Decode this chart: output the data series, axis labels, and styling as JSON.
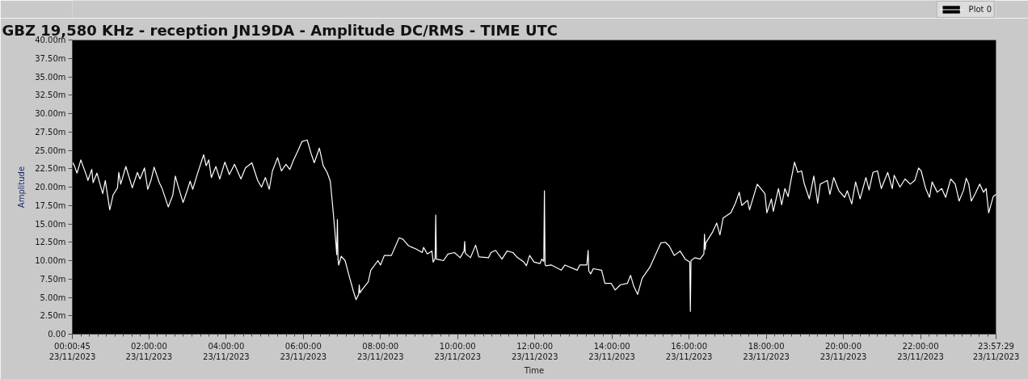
{
  "chart_data": {
    "type": "line",
    "title": "GBZ  19,580 KHz - reception JN19DA -  Amplitude DC/RMS   - TIME UTC",
    "xlabel": "Time",
    "ylabel": "Amplitude",
    "xlim": [
      "2023-11-23T00:00:45",
      "2023-11-23T23:57:29"
    ],
    "xticks": [
      {
        "value": "2023-11-23T00:00:45",
        "label": "00:00:45\n23/11/2023"
      },
      {
        "value": "2023-11-23T02:00",
        "label": "02:00:00\n23/11/2023"
      },
      {
        "value": "2023-11-23T04:00",
        "label": "04:00:00\n23/11/2023"
      },
      {
        "value": "2023-11-23T06:00",
        "label": "06:00:00\n23/11/2023"
      },
      {
        "value": "2023-11-23T08:00",
        "label": "08:00:00\n23/11/2023"
      },
      {
        "value": "2023-11-23T10:00",
        "label": "10:00:00\n23/11/2023"
      },
      {
        "value": "2023-11-23T12:00",
        "label": "12:00:00\n23/11/2023"
      },
      {
        "value": "2023-11-23T14:00",
        "label": "14:00:00\n23/11/2023"
      },
      {
        "value": "2023-11-23T16:00",
        "label": "16:00:00\n23/11/2023"
      },
      {
        "value": "2023-11-23T18:00",
        "label": "18:00:00\n23/11/2023"
      },
      {
        "value": "2023-11-23T20:00",
        "label": "20:00:00\n23/11/2023"
      },
      {
        "value": "2023-11-23T22:00",
        "label": "22:00:00\n23/11/2023"
      },
      {
        "value": "2023-11-23T23:57:29",
        "label": "23:57:29\n23/11/2023"
      }
    ],
    "ylim": [
      0,
      40
    ],
    "yticks": [
      {
        "value": 0,
        "label": "0.00"
      },
      {
        "value": 2.5,
        "label": "2.50m"
      },
      {
        "value": 5,
        "label": "5.00m"
      },
      {
        "value": 7.5,
        "label": "7.50m"
      },
      {
        "value": 10,
        "label": "10.00m"
      },
      {
        "value": 12.5,
        "label": "12.50m"
      },
      {
        "value": 15,
        "label": "15.00m"
      },
      {
        "value": 17.5,
        "label": "17.50m"
      },
      {
        "value": 20,
        "label": "20.00m"
      },
      {
        "value": 22.5,
        "label": "22.50m"
      },
      {
        "value": 25,
        "label": "25.00m"
      },
      {
        "value": 27.5,
        "label": "27.50m"
      },
      {
        "value": 30,
        "label": "30.00m"
      },
      {
        "value": 32.5,
        "label": "32.50m"
      },
      {
        "value": 35,
        "label": "35.00m"
      },
      {
        "value": 37.5,
        "label": "37.50m"
      },
      {
        "value": 40,
        "label": "40.00m"
      }
    ],
    "legend": "top right",
    "x": [
      "2023-11-23T00:00:45",
      "2023-11-23T00:04",
      "2023-11-23T00:08",
      "2023-11-23T00:14",
      "2023-11-23T00:23",
      "2023-11-23T00:25",
      "2023-11-23T00:31",
      "2023-11-23T00:33",
      "2023-11-23T00:39",
      "2023-11-23T00:48",
      "2023-11-23T00:52",
      "2023-11-23T00:59",
      "2023-11-23T01:04",
      "2023-11-23T01:11",
      "2023-11-23T01:13",
      "2023-11-23T01:16",
      "2023-11-23T01:24",
      "2023-11-23T01:34",
      "2023-11-23T01:42",
      "2023-11-23T01:46",
      "2023-11-23T01:53",
      "2023-11-23T01:58",
      "2023-11-23T02:03",
      "2023-11-23T02:08",
      "2023-11-23T02:16",
      "2023-11-23T02:20",
      "2023-11-23T02:30",
      "2023-11-23T02:37",
      "2023-11-23T02:41",
      "2023-11-23T02:45",
      "2023-11-23T02:53",
      "2023-11-23T03:00",
      "2023-11-23T03:04",
      "2023-11-23T03:08",
      "2023-11-23T03:16",
      "2023-11-23T03:25",
      "2023-11-23T03:29",
      "2023-11-23T03:33",
      "2023-11-23T03:37",
      "2023-11-23T03:44",
      "2023-11-23T03:50",
      "2023-11-23T03:58",
      "2023-11-23T04:05",
      "2023-11-23T04:13",
      "2023-11-23T04:23",
      "2023-11-23T04:30",
      "2023-11-23T04:40",
      "2023-11-23T04:49",
      "2023-11-23T04:55",
      "2023-11-23T05:01",
      "2023-11-23T05:07",
      "2023-11-23T05:12",
      "2023-11-23T05:20",
      "2023-11-23T05:26",
      "2023-11-23T05:33",
      "2023-11-23T05:39",
      "2023-11-23T05:45",
      "2023-11-23T05:51",
      "2023-11-23T05:58",
      "2023-11-23T06:06",
      "2023-11-23T06:12",
      "2023-11-23T06:17",
      "2023-11-23T06:25",
      "2023-11-23T06:31",
      "2023-11-23T06:37",
      "2023-11-23T06:42",
      "2023-11-23T06:46",
      "2023-11-23T06:50",
      "2023-11-23T06:52",
      "2023-11-23T06:53",
      "2023-11-23T06:54",
      "2023-11-23T06:55",
      "2023-11-23T06:59",
      "2023-11-23T07:05",
      "2023-11-23T07:11",
      "2023-11-23T07:18",
      "2023-11-23T07:22",
      "2023-11-23T07:26",
      "2023-11-23T07:27",
      "2023-11-23T07:28",
      "2023-11-23T07:31",
      "2023-11-23T07:41",
      "2023-11-23T07:45",
      "2023-11-23T07:56",
      "2023-11-23T08:00",
      "2023-11-23T08:06",
      "2023-11-23T08:17",
      "2023-11-23T08:29",
      "2023-11-23T08:35",
      "2023-11-23T08:44",
      "2023-11-23T08:55",
      "2023-11-23T09:05",
      "2023-11-23T09:07",
      "2023-11-23T09:13",
      "2023-11-23T09:20",
      "2023-11-23T09:22",
      "2023-11-23T09:25",
      "2023-11-23T09:26",
      "2023-11-23T09:27",
      "2023-11-23T09:38",
      "2023-11-23T09:45",
      "2023-11-23T09:55",
      "2023-11-23T10:04",
      "2023-11-23T10:10",
      "2023-11-23T10:11",
      "2023-11-23T10:12",
      "2023-11-23T10:20",
      "2023-11-23T10:28",
      "2023-11-23T10:33",
      "2023-11-23T10:48",
      "2023-11-23T10:52",
      "2023-11-23T10:59",
      "2023-11-23T11:09",
      "2023-11-23T11:17",
      "2023-11-23T11:26",
      "2023-11-23T11:32",
      "2023-11-23T11:43",
      "2023-11-23T11:47",
      "2023-11-23T11:52",
      "2023-11-23T11:59",
      "2023-11-23T12:08",
      "2023-11-23T12:11",
      "2023-11-23T12:14",
      "2023-11-23T12:15",
      "2023-11-23T12:16",
      "2023-11-23T12:17",
      "2023-11-23T12:26",
      "2023-11-23T12:41",
      "2023-11-23T12:47",
      "2023-11-23T13:06",
      "2023-11-23T13:10",
      "2023-11-23T13:21",
      "2023-11-23T13:23",
      "2023-11-23T13:24",
      "2023-11-23T13:27",
      "2023-11-23T13:31",
      "2023-11-23T13:44",
      "2023-11-23T13:49",
      "2023-11-23T13:59",
      "2023-11-23T14:05",
      "2023-11-23T14:13",
      "2023-11-23T14:24",
      "2023-11-23T14:29",
      "2023-11-23T14:34",
      "2023-11-23T14:40",
      "2023-11-23T14:47",
      "2023-11-23T14:59",
      "2023-11-23T15:16",
      "2023-11-23T15:23",
      "2023-11-23T15:29",
      "2023-11-23T15:37",
      "2023-11-23T15:46",
      "2023-11-23T15:54",
      "2023-11-23T16:01",
      "2023-11-23T16:02",
      "2023-11-23T16:03",
      "2023-11-23T16:09",
      "2023-11-23T16:17",
      "2023-11-23T16:23",
      "2023-11-23T16:24",
      "2023-11-23T16:25",
      "2023-11-23T16:26",
      "2023-11-23T16:36",
      "2023-11-23T16:43",
      "2023-11-23T16:48",
      "2023-11-23T16:53",
      "2023-11-23T17:05",
      "2023-11-23T17:12",
      "2023-11-23T17:18",
      "2023-11-23T17:22",
      "2023-11-23T17:31",
      "2023-11-23T17:34",
      "2023-11-23T17:46",
      "2023-11-23T17:58",
      "2023-11-23T18:01",
      "2023-11-23T18:08",
      "2023-11-23T18:11",
      "2023-11-23T18:19",
      "2023-11-23T18:24",
      "2023-11-23T18:29",
      "2023-11-23T18:34",
      "2023-11-23T18:38",
      "2023-11-23T18:44",
      "2023-11-23T18:49",
      "2023-11-23T18:55",
      "2023-11-23T18:59",
      "2023-11-23T19:07",
      "2023-11-23T19:14",
      "2023-11-23T19:20",
      "2023-11-23T19:24",
      "2023-11-23T19:35",
      "2023-11-23T19:39",
      "2023-11-23T19:45",
      "2023-11-23T19:53",
      "2023-11-23T20:02",
      "2023-11-23T20:06",
      "2023-11-23T20:13",
      "2023-11-23T20:19",
      "2023-11-23T20:26",
      "2023-11-23T20:35",
      "2023-11-23T20:40",
      "2023-11-23T20:46",
      "2023-11-23T20:53",
      "2023-11-23T20:59",
      "2023-11-23T21:09",
      "2023-11-23T21:16",
      "2023-11-23T21:19",
      "2023-11-23T21:28",
      "2023-11-23T21:36",
      "2023-11-23T21:44",
      "2023-11-23T21:51",
      "2023-11-23T21:57",
      "2023-11-23T22:01",
      "2023-11-23T22:08",
      "2023-11-23T22:14",
      "2023-11-23T22:18",
      "2023-11-23T22:26",
      "2023-11-23T22:33",
      "2023-11-23T22:39",
      "2023-11-23T22:47",
      "2023-11-23T22:54",
      "2023-11-23T23:00",
      "2023-11-23T23:07",
      "2023-11-23T23:11",
      "2023-11-23T23:15",
      "2023-11-23T23:19",
      "2023-11-23T23:25",
      "2023-11-23T23:32",
      "2023-11-23T23:38",
      "2023-11-23T23:42",
      "2023-11-23T23:46",
      "2023-11-23T23:53",
      "2023-11-23T23:57:29"
    ],
    "series": [
      {
        "name": "Plot 0",
        "color": "#ffffff",
        "values": [
          23.4,
          22.9,
          21.9,
          23.7,
          21.5,
          20.9,
          22.4,
          20.6,
          21.9,
          19.1,
          20.9,
          16.9,
          18.9,
          19.9,
          22.0,
          20.4,
          22.8,
          19.9,
          22.0,
          21.1,
          22.6,
          19.7,
          20.9,
          22.7,
          20.6,
          19.9,
          17.3,
          18.9,
          21.5,
          20.2,
          17.9,
          19.7,
          20.8,
          19.7,
          22.0,
          24.4,
          22.9,
          23.7,
          21.3,
          22.8,
          21.1,
          23.4,
          21.7,
          23.1,
          21.1,
          22.6,
          23.3,
          20.9,
          20.0,
          21.3,
          19.7,
          22.2,
          24.0,
          22.2,
          23.1,
          22.4,
          23.7,
          24.8,
          26.2,
          26.4,
          24.6,
          23.3,
          25.3,
          22.9,
          22.0,
          20.8,
          17.1,
          13.1,
          10.8,
          15.6,
          10.2,
          9.4,
          10.6,
          10.0,
          8.0,
          5.8,
          4.7,
          5.4,
          6.7,
          5.6,
          6.0,
          7.1,
          8.7,
          10.0,
          9.4,
          10.7,
          10.7,
          13.1,
          12.9,
          12.0,
          11.6,
          11.1,
          11.8,
          10.9,
          11.3,
          9.8,
          10.3,
          16.2,
          10.2,
          10.0,
          10.9,
          11.1,
          10.4,
          11.3,
          12.6,
          11.0,
          10.4,
          12.1,
          10.5,
          10.4,
          11.1,
          11.4,
          10.2,
          11.3,
          11.1,
          10.5,
          9.8,
          9.3,
          10.7,
          9.8,
          9.6,
          10.2,
          9.9,
          19.5,
          9.5,
          9.3,
          9.4,
          8.7,
          9.4,
          8.7,
          9.4,
          9.4,
          11.4,
          8.6,
          8.2,
          8.9,
          8.7,
          6.9,
          6.9,
          6.0,
          6.7,
          6.9,
          8.0,
          6.5,
          5.4,
          7.6,
          9.1,
          12.4,
          12.5,
          12.0,
          10.7,
          11.3,
          10.2,
          9.8,
          3.1,
          10.0,
          10.4,
          10.2,
          10.9,
          13.6,
          11.5,
          12.4,
          13.8,
          15.1,
          13.5,
          15.8,
          16.5,
          17.8,
          19.3,
          17.5,
          18.2,
          16.9,
          20.4,
          19.1,
          16.5,
          18.4,
          16.7,
          19.8,
          17.6,
          19.8,
          18.7,
          20.7,
          23.4,
          22.0,
          22.2,
          20.5,
          18.4,
          21.5,
          17.8,
          20.4,
          20.9,
          19.0,
          21.3,
          19.5,
          18.6,
          19.5,
          17.7,
          20.7,
          18.4,
          21.3,
          19.6,
          22.0,
          22.2,
          19.8,
          22.0,
          19.8,
          21.6,
          20.0,
          21.1,
          20.4,
          20.9,
          22.6,
          22.2,
          19.8,
          18.6,
          20.7,
          19.3,
          19.8,
          18.6,
          21.1,
          20.4,
          18.1,
          19.6,
          21.2,
          20.4,
          18.1,
          19.1,
          20.4,
          19.3,
          19.8,
          16.5,
          18.7,
          19.0
        ]
      }
    ]
  }
}
